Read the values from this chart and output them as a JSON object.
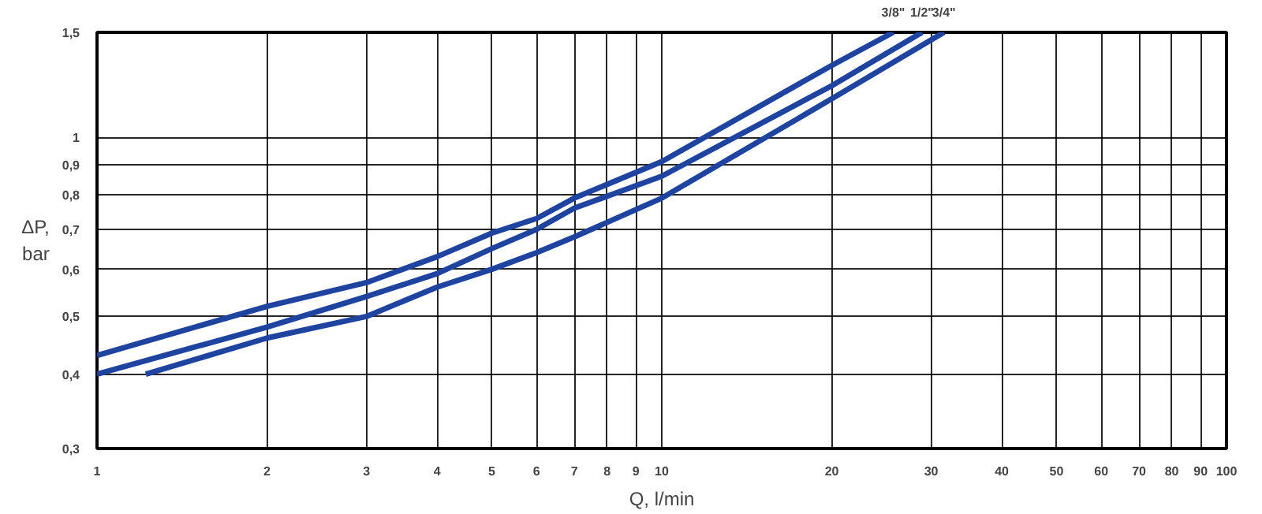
{
  "chart_data": {
    "type": "line",
    "xlabel": "Q, l/min",
    "ylabel": "ΔP,\nbar",
    "log": "xy",
    "grid": true,
    "xlim": [
      1,
      100
    ],
    "ylim": [
      0.3,
      1.5
    ],
    "xticks": [
      1,
      2,
      3,
      4,
      5,
      6,
      7,
      8,
      9,
      10,
      20,
      30,
      40,
      50,
      60,
      70,
      80,
      90,
      100
    ],
    "yticks": [
      {
        "value": 0.3,
        "label": "0,3"
      },
      {
        "value": 0.4,
        "label": "0,4"
      },
      {
        "value": 0.5,
        "label": "0,5"
      },
      {
        "value": 0.6,
        "label": "0,6"
      },
      {
        "value": 0.7,
        "label": "0,7"
      },
      {
        "value": 0.8,
        "label": "0,8"
      },
      {
        "value": 0.9,
        "label": "0,9"
      },
      1,
      {
        "value": 1.5,
        "label": "1,5"
      }
    ],
    "series": [
      {
        "name": "3/8\"",
        "color": "#1f44a0",
        "x": [
          1,
          2,
          3,
          4,
          5,
          6,
          7,
          10,
          20,
          25.7
        ],
        "values": [
          0.43,
          0.52,
          0.57,
          0.63,
          0.69,
          0.73,
          0.79,
          0.91,
          1.32,
          1.5
        ]
      },
      {
        "name": "1/2\"",
        "color": "#1f44a0",
        "x": [
          1,
          2,
          3,
          4,
          5,
          6,
          7,
          10,
          20,
          28.9
        ],
        "values": [
          0.4,
          0.48,
          0.54,
          0.59,
          0.65,
          0.7,
          0.76,
          0.86,
          1.22,
          1.5
        ]
      },
      {
        "name": "3/4\"",
        "color": "#1f44a0",
        "x": [
          1.22,
          2,
          3,
          4,
          5,
          6,
          7,
          10,
          20,
          31.6
        ],
        "values": [
          0.4,
          0.46,
          0.5,
          0.56,
          0.6,
          0.64,
          0.68,
          0.79,
          1.16,
          1.5
        ]
      }
    ]
  }
}
